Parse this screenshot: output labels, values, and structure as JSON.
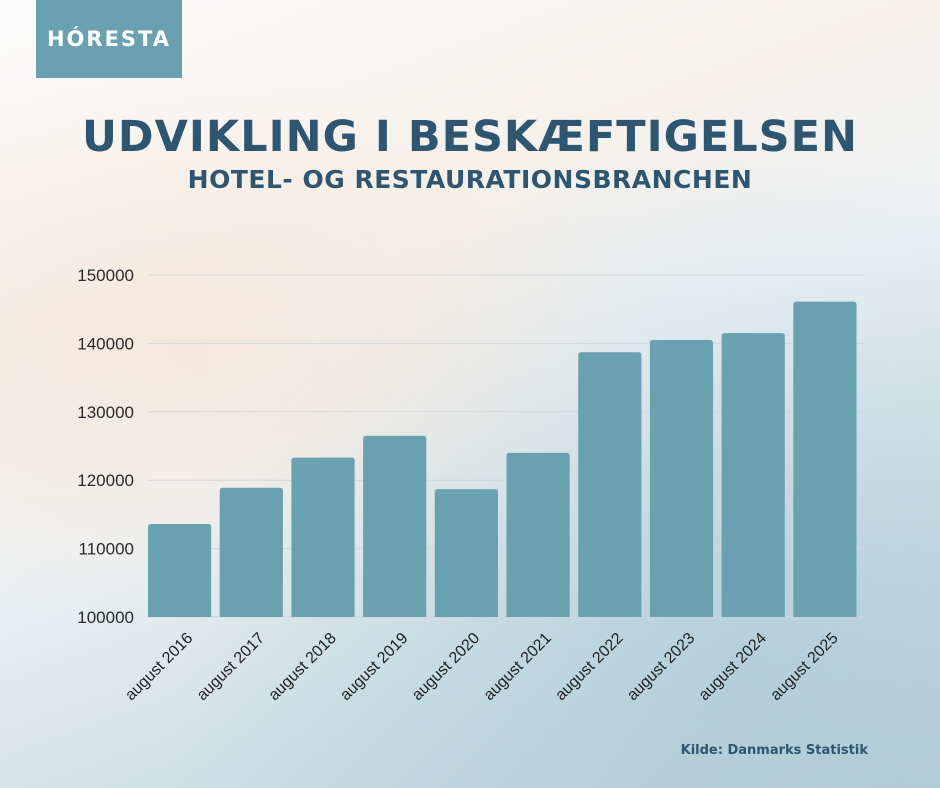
{
  "logo": {
    "text": "HÓRESTA"
  },
  "chart_data": {
    "type": "bar",
    "title": "UDVIKLING I BESKÆFTIGELSEN",
    "subtitle": "HOTEL- OG RESTAURATIONSBRANCHEN",
    "categories": [
      "august 2016",
      "august 2017",
      "august 2018",
      "august 2019",
      "august 2020",
      "august 2021",
      "august 2022",
      "august 2023",
      "august 2024",
      "august 2025"
    ],
    "values": [
      113600,
      118900,
      123300,
      126500,
      118700,
      124000,
      138700,
      140500,
      141500,
      146100
    ],
    "ylim": [
      100000,
      150000
    ],
    "yticks": [
      "100000",
      "110000",
      "120000",
      "130000",
      "140000",
      "150000"
    ],
    "grid": true,
    "bar_color": "#6aa1b0",
    "xlabel": "",
    "ylabel": ""
  },
  "source": "Kilde: Danmarks Statistik"
}
